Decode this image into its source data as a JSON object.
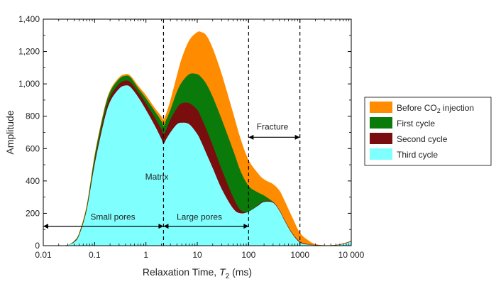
{
  "chart_data": {
    "type": "area",
    "xlabel": "Relaxation Time, ",
    "xlabel_var": "T",
    "xlabel_sub": "2",
    "xlabel_unit": " (ms)",
    "ylabel": "Amplitude",
    "x_scale": "log",
    "xlim": [
      0.01,
      10000
    ],
    "ylim": [
      0,
      1400
    ],
    "grid": false,
    "legend_position": "right",
    "x_ticks": [
      {
        "value": 0.01,
        "label": "0.01"
      },
      {
        "value": 0.1,
        "label": "0.1"
      },
      {
        "value": 1,
        "label": "1"
      },
      {
        "value": 10,
        "label": "10"
      },
      {
        "value": 100,
        "label": "100"
      },
      {
        "value": 1000,
        "label": "1000"
      },
      {
        "value": 10000,
        "label": "10 000"
      }
    ],
    "y_ticks": [
      {
        "value": 0,
        "label": "0"
      },
      {
        "value": 200,
        "label": "200"
      },
      {
        "value": 400,
        "label": "400"
      },
      {
        "value": 600,
        "label": "600"
      },
      {
        "value": 800,
        "label": "800"
      },
      {
        "value": 1000,
        "label": "1,000"
      },
      {
        "value": 1200,
        "label": "1,200"
      },
      {
        "value": 1400,
        "label": "1,400"
      }
    ],
    "series": [
      {
        "name": "Before CO2 injection",
        "legend_main": "Before CO",
        "legend_sub": "2",
        "legend_tail": " injection",
        "color": "#ff8c00",
        "x": [
          0.01,
          0.02,
          0.03,
          0.04,
          0.05,
          0.07,
          0.1,
          0.15,
          0.2,
          0.3,
          0.4,
          0.5,
          0.7,
          1,
          1.5,
          2,
          2.2,
          2.5,
          3,
          4,
          5,
          7,
          10,
          12,
          15,
          20,
          30,
          50,
          70,
          100,
          150,
          200,
          300,
          400,
          500,
          700,
          1000,
          1500,
          2000,
          3000,
          5000,
          7000,
          10000
        ],
        "y": [
          0,
          0,
          5,
          30,
          80,
          250,
          560,
          830,
          960,
          1040,
          1060,
          1050,
          990,
          930,
          850,
          800,
          780,
          820,
          900,
          1050,
          1160,
          1270,
          1320,
          1320,
          1300,
          1220,
          1060,
          820,
          660,
          530,
          450,
          410,
          380,
          340,
          280,
          180,
          80,
          30,
          10,
          3,
          5,
          15,
          30
        ]
      },
      {
        "name": "First cycle",
        "legend_main": "First cycle",
        "legend_sub": "",
        "legend_tail": "",
        "color": "#0a7a0a",
        "x": [
          0.01,
          0.02,
          0.03,
          0.04,
          0.05,
          0.07,
          0.1,
          0.15,
          0.2,
          0.3,
          0.4,
          0.5,
          0.7,
          1,
          1.5,
          2,
          2.2,
          2.5,
          3,
          4,
          5,
          7,
          10,
          12,
          15,
          20,
          30,
          50,
          70,
          100,
          150,
          200,
          300,
          400,
          500,
          700,
          1000,
          1500,
          2000,
          3000,
          5000,
          7000,
          10000
        ],
        "y": [
          0,
          0,
          5,
          28,
          75,
          240,
          550,
          820,
          950,
          1030,
          1050,
          1040,
          975,
          910,
          830,
          770,
          740,
          780,
          840,
          950,
          1010,
          1060,
          1060,
          1040,
          1000,
          920,
          780,
          590,
          460,
          370,
          330,
          310,
          270,
          220,
          160,
          80,
          25,
          8,
          4,
          2,
          4,
          12,
          28
        ]
      },
      {
        "name": "Second cycle",
        "legend_main": "Second cycle",
        "legend_sub": "",
        "legend_tail": "",
        "color": "#7a0d0d",
        "x": [
          0.01,
          0.02,
          0.03,
          0.04,
          0.05,
          0.07,
          0.1,
          0.15,
          0.2,
          0.3,
          0.4,
          0.5,
          0.7,
          1,
          1.5,
          2,
          2.2,
          2.5,
          3,
          4,
          5,
          7,
          10,
          12,
          15,
          20,
          30,
          50,
          70,
          100,
          150,
          200,
          300,
          400,
          500,
          700,
          1000,
          1500,
          2000,
          3000,
          5000,
          7000,
          10000
        ],
        "y": [
          0,
          0,
          5,
          25,
          70,
          230,
          520,
          790,
          920,
          1000,
          1020,
          1010,
          950,
          880,
          790,
          720,
          690,
          720,
          780,
          850,
          880,
          880,
          840,
          790,
          720,
          620,
          470,
          300,
          220,
          210,
          250,
          275,
          270,
          220,
          160,
          80,
          25,
          8,
          4,
          2,
          4,
          12,
          28
        ]
      },
      {
        "name": "Third cycle",
        "legend_main": "Third cycle",
        "legend_sub": "",
        "legend_tail": "",
        "color": "#80ffff",
        "x": [
          0.01,
          0.02,
          0.03,
          0.04,
          0.05,
          0.07,
          0.1,
          0.15,
          0.2,
          0.3,
          0.4,
          0.5,
          0.7,
          1,
          1.5,
          2,
          2.2,
          2.5,
          3,
          4,
          5,
          7,
          10,
          12,
          15,
          20,
          30,
          50,
          70,
          100,
          150,
          200,
          300,
          400,
          500,
          700,
          1000,
          1500,
          2000,
          3000,
          5000,
          7000,
          10000
        ],
        "y": [
          0,
          0,
          5,
          22,
          65,
          220,
          500,
          760,
          890,
          970,
          990,
          980,
          920,
          840,
          740,
          660,
          630,
          660,
          700,
          750,
          760,
          750,
          690,
          640,
          570,
          480,
          350,
          230,
          200,
          210,
          245,
          270,
          265,
          215,
          155,
          75,
          20,
          6,
          3,
          1,
          3,
          10,
          25
        ]
      }
    ],
    "annotations": {
      "small_pores": {
        "label": "Small pores",
        "x_from": 0.01,
        "x_to": 2.2,
        "y": 120
      },
      "large_pores": {
        "label": "Large pores",
        "x_from": 2.2,
        "x_to": 100,
        "y": 120
      },
      "fracture": {
        "label": "Fracture",
        "x_from": 100,
        "x_to": 1000,
        "y": 670
      },
      "matrix": {
        "label": "Matrix",
        "x": 3.5,
        "y": 400
      },
      "dashed_lines_x": [
        2.2,
        100,
        1000
      ]
    }
  }
}
